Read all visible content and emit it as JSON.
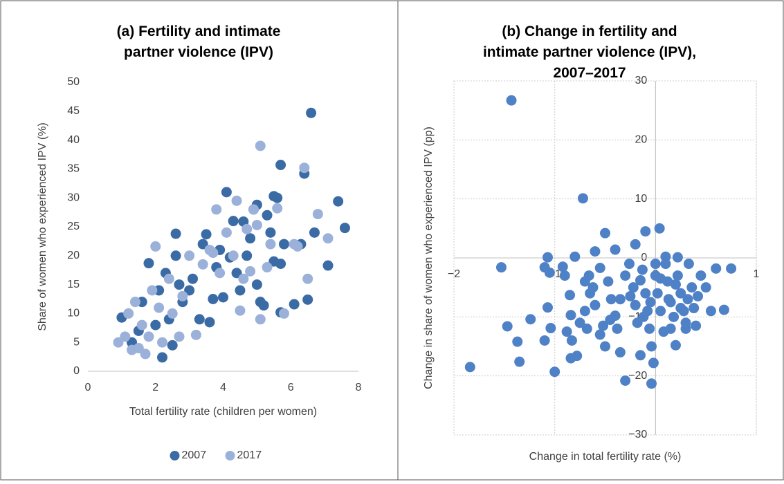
{
  "chart_data": [
    {
      "type": "scatter",
      "title": "(a) Fertility and intimate partner violence (IPV)",
      "x_label": "Total fertility rate (children per women)",
      "y_label": "Share of women who experienced IPV (%)",
      "xlim": [
        0,
        8
      ],
      "xticks": [
        0,
        2,
        4,
        6,
        8
      ],
      "ylim": [
        0,
        50
      ],
      "yticks": [
        0,
        5,
        10,
        15,
        20,
        25,
        30,
        35,
        40,
        45,
        50
      ],
      "grid": false,
      "legend": "bottom",
      "series": [
        {
          "name": "2007",
          "color": "#3b6ba5",
          "x": [
            1.0,
            1.3,
            1.5,
            1.6,
            1.8,
            2.0,
            2.1,
            2.2,
            2.3,
            2.4,
            2.5,
            2.6,
            2.6,
            2.7,
            2.8,
            3.0,
            3.1,
            3.3,
            3.4,
            3.5,
            3.6,
            3.7,
            3.8,
            4.0,
            4.1,
            4.2,
            4.3,
            4.5,
            4.6,
            4.7,
            4.9,
            5.0,
            5.1,
            5.2,
            5.3,
            5.4,
            5.5,
            5.6,
            5.7,
            5.7,
            5.8,
            5.7,
            6.1,
            6.3,
            6.4,
            6.5,
            6.6,
            6.7,
            7.1,
            7.4,
            7.6,
            3.9,
            4.4,
            5.0,
            5.5,
            4.8
          ],
          "values": [
            9.3,
            5,
            7,
            12,
            18.7,
            8,
            14,
            2.4,
            17,
            9,
            4.5,
            23.8,
            20,
            15,
            12,
            14,
            16,
            9,
            22,
            23.7,
            8.5,
            12.5,
            18,
            12.8,
            31,
            19.7,
            26,
            14,
            25.9,
            20,
            28,
            15,
            12,
            11.4,
            27,
            24,
            30.3,
            30,
            35.7,
            18.6,
            22,
            10.2,
            11.6,
            22,
            34.2,
            12.4,
            44.7,
            24,
            18.3,
            29.4,
            24.8,
            21,
            17,
            28.8,
            19,
            23
          ]
        },
        {
          "name": "2017",
          "color": "#9bb1d9",
          "x": [
            0.9,
            1.1,
            1.2,
            1.3,
            1.4,
            1.5,
            1.6,
            1.7,
            1.8,
            1.9,
            2.0,
            2.1,
            2.2,
            2.4,
            2.5,
            2.7,
            2.8,
            3.0,
            3.2,
            3.4,
            3.6,
            3.8,
            3.9,
            4.1,
            4.3,
            4.4,
            4.5,
            4.6,
            4.8,
            4.9,
            5.0,
            5.1,
            5.1,
            5.3,
            5.4,
            5.6,
            5.8,
            6.1,
            6.2,
            6.4,
            6.5,
            6.8,
            7.1,
            4.7,
            3.7
          ],
          "values": [
            5,
            6,
            10,
            3.7,
            12,
            4,
            8,
            3,
            6,
            14,
            21.6,
            11,
            5,
            16,
            10,
            6,
            13,
            20,
            6.3,
            18.5,
            21,
            28,
            17,
            24,
            20,
            29.5,
            10.5,
            16,
            17.3,
            28,
            25.3,
            9,
            39,
            18,
            22,
            28.2,
            10,
            22,
            21.6,
            35.2,
            16,
            27.2,
            23,
            24.6,
            20.5
          ]
        }
      ]
    },
    {
      "type": "scatter",
      "title": "(b) Change in fertility and intimate partner violence (IPV), 2007–2017",
      "x_label": "Change in total fertility rate (%)",
      "y_label": "Change in share of women who experienced IPV (pp)",
      "xlim": [
        -2,
        1
      ],
      "xticks": [
        {
          "value": -2,
          "label": "−2"
        },
        {
          "value": -1,
          "label": "−1"
        },
        0,
        1
      ],
      "ylim": [
        -30,
        30
      ],
      "yticks": [
        {
          "value": -30,
          "label": "−30"
        },
        {
          "value": -20,
          "label": "−20"
        },
        {
          "value": -10,
          "label": "−10"
        },
        0,
        10,
        20,
        30
      ],
      "grid": true,
      "axes_through_origin": true,
      "series": [
        {
          "color": "#4f81c6",
          "x": [
            -1.43,
            -0.72,
            -1.53,
            -1.84,
            -1.47,
            -1.37,
            -1.35,
            -1.24,
            -1.0,
            -1.1,
            -1.07,
            -1.05,
            -1.07,
            -1.04,
            -1.1,
            -0.92,
            -0.8,
            -0.85,
            -0.84,
            -0.83,
            -0.84,
            -0.78,
            -0.7,
            -0.68,
            -0.66,
            -0.62,
            -0.6,
            -0.55,
            -0.52,
            -0.5,
            -0.47,
            -0.44,
            -0.4,
            -0.38,
            -0.35,
            -0.3,
            -0.26,
            -0.22,
            -0.2,
            -0.18,
            -0.15,
            -0.13,
            -0.1,
            -0.08,
            -0.06,
            -0.04,
            -0.02,
            -0.04,
            0.0,
            0.02,
            0.05,
            0.08,
            0.1,
            0.12,
            0.15,
            0.18,
            0.2,
            0.22,
            0.25,
            0.28,
            0.3,
            0.33,
            0.36,
            0.38,
            0.4,
            0.45,
            0.5,
            0.55,
            0.6,
            0.68,
            0.75,
            0.1,
            0.22,
            -0.2,
            -0.1,
            0.04,
            -0.5,
            -0.4,
            -0.6,
            -0.9,
            -0.7,
            -0.25,
            -0.15,
            0.0,
            0.05,
            0.13,
            0.25,
            0.32,
            0.42,
            0.3,
            0.15,
            -0.05,
            -0.35,
            -0.45,
            -0.55,
            -0.75,
            -0.88,
            -0.65,
            -0.3,
            -0.12,
            0.2
          ],
          "values": [
            26.7,
            10.1,
            -1.6,
            -18.5,
            -11.6,
            -14.2,
            -17.6,
            -10.4,
            -19.3,
            -1.6,
            0.1,
            -2.5,
            -8.4,
            -11.9,
            -14,
            -1.5,
            0.2,
            -6.3,
            -9.7,
            -14,
            -17,
            -16.6,
            -9,
            -12,
            -3,
            -5,
            -8,
            -1.7,
            -11.5,
            -15,
            -4,
            -7,
            -9.8,
            -12,
            -16,
            -20.8,
            -1,
            -5,
            -8,
            -11,
            -16.5,
            -2,
            -6,
            -9,
            -12,
            -15,
            -17.8,
            -21.3,
            -3,
            -6,
            -9,
            -12.5,
            -1,
            -4,
            -7.5,
            -10,
            -14.8,
            -3,
            -6,
            -9,
            -12,
            -1,
            -5,
            -8.5,
            -11.5,
            -3,
            -5,
            -9,
            -1.8,
            -8.8,
            -1.8,
            0.2,
            0.1,
            2.3,
            4.5,
            5,
            4.2,
            1.4,
            1.1,
            -3,
            -4,
            -6.5,
            -3.8,
            -1,
            -3.5,
            -7,
            -8.5,
            -7,
            -6.5,
            -11,
            -12,
            -7.5,
            -7,
            -10.5,
            -13,
            -11,
            -12.5,
            -6,
            -3,
            -10,
            -4.5
          ]
        }
      ]
    }
  ]
}
